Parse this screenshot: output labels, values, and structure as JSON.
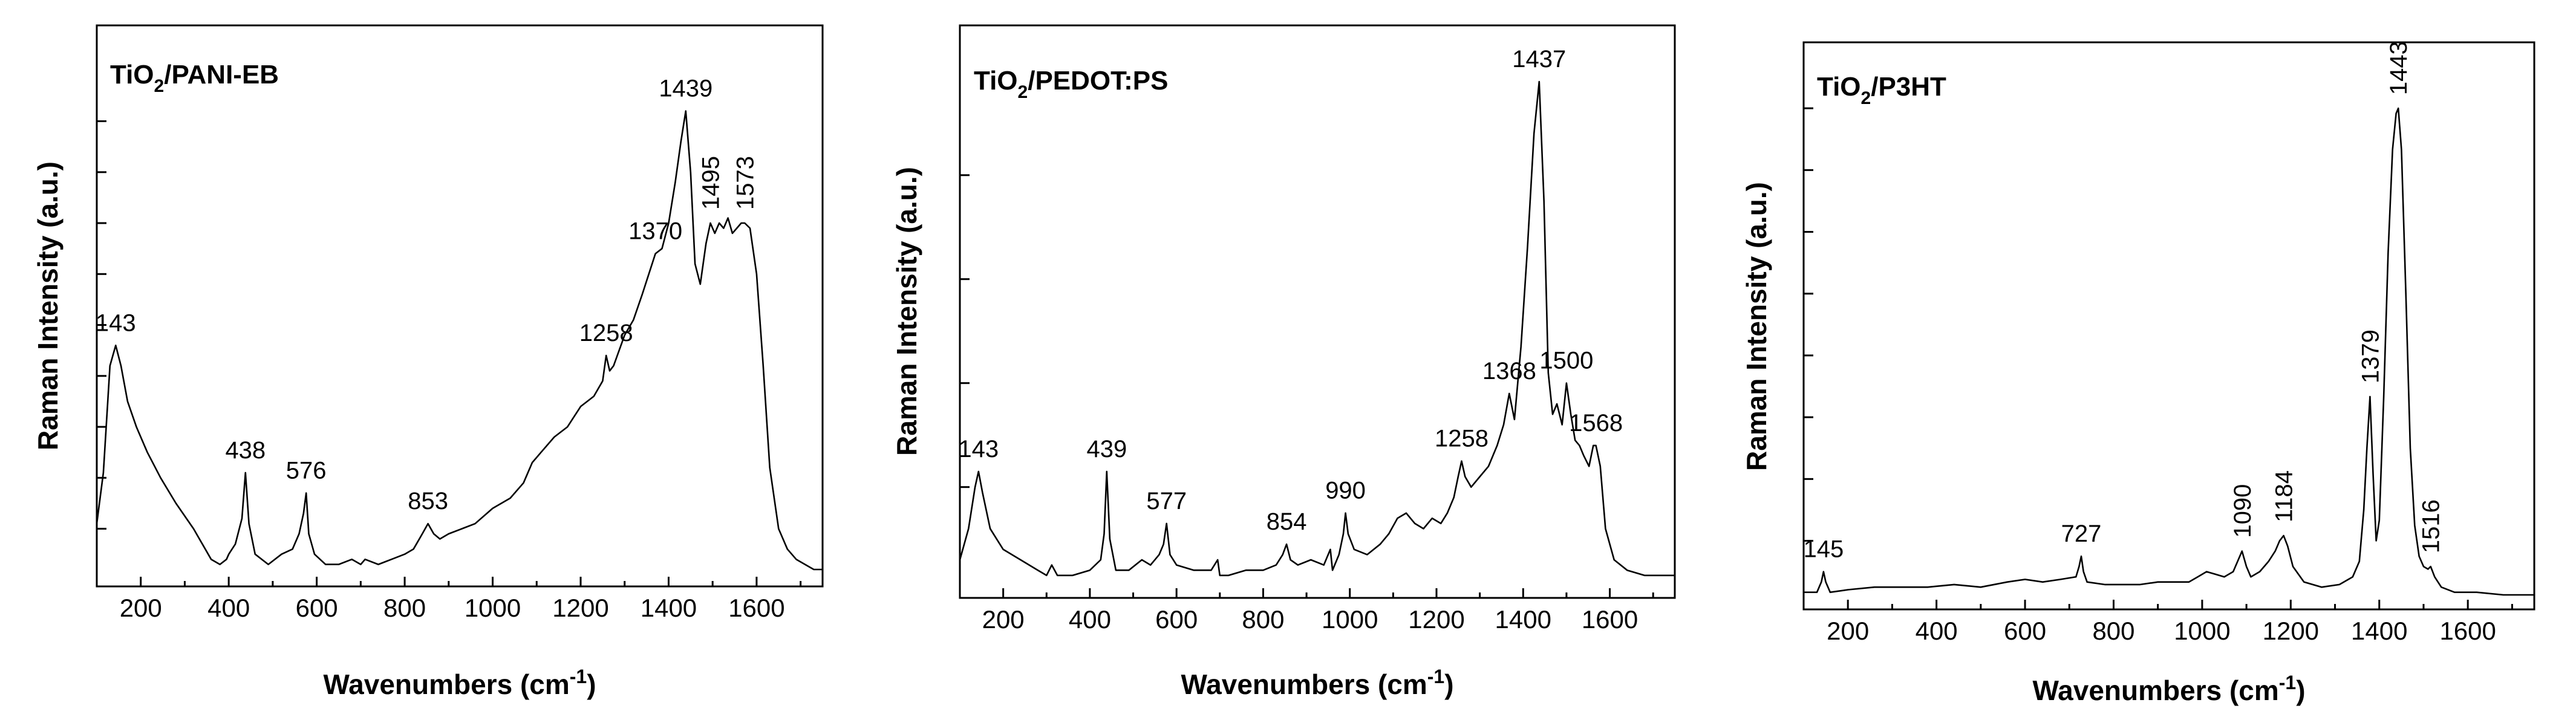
{
  "chart_data": [
    {
      "type": "line",
      "title": "TiO2/PANI-EB",
      "title_main": "TiO",
      "title_sub": "2",
      "title_rest": "/PANI-EB",
      "xlabel": "Wavenumbers (cm-1)",
      "xlabel_main": "Wavenumbers (cm",
      "xlabel_sup": "-1",
      "xlabel_end": ")",
      "ylabel": "Raman Intensity (a.u.)",
      "xlim": [
        100,
        1750
      ],
      "ylim": [
        0,
        100
      ],
      "xticks": [
        200,
        400,
        600,
        800,
        1000,
        1200,
        1400,
        1600
      ],
      "xtick_labels": [
        "200",
        "400",
        "600",
        "800",
        "1000",
        "1200",
        "1400",
        "1600"
      ],
      "yticks": [
        10,
        20,
        30,
        40,
        50,
        60,
        70,
        80,
        90
      ],
      "series": [
        {
          "name": "TiO2/PANI-EB",
          "x": [
            100,
            115,
            130,
            143,
            155,
            170,
            190,
            215,
            245,
            280,
            320,
            360,
            380,
            395,
            400,
            415,
            430,
            438,
            446,
            460,
            490,
            520,
            545,
            560,
            570,
            576,
            582,
            595,
            620,
            650,
            680,
            700,
            710,
            740,
            770,
            800,
            820,
            840,
            853,
            866,
            880,
            900,
            930,
            960,
            1000,
            1040,
            1070,
            1090,
            1110,
            1140,
            1170,
            1200,
            1230,
            1250,
            1258,
            1266,
            1275,
            1300,
            1320,
            1340,
            1355,
            1370,
            1385,
            1400,
            1415,
            1428,
            1439,
            1450,
            1460,
            1472,
            1485,
            1495,
            1505,
            1515,
            1525,
            1535,
            1545,
            1555,
            1565,
            1573,
            1585,
            1600,
            1615,
            1630,
            1650,
            1670,
            1690,
            1710,
            1730,
            1750
          ],
          "values": [
            11,
            21,
            42,
            46,
            42,
            35,
            30,
            25,
            20,
            15,
            10,
            4,
            3,
            4,
            5,
            7,
            12,
            21,
            11,
            5,
            3,
            5,
            6,
            9,
            13,
            17,
            9,
            5,
            3,
            3,
            4,
            3,
            4,
            3,
            4,
            5,
            6,
            9,
            11,
            9,
            8,
            9,
            10,
            11,
            14,
            16,
            19,
            23,
            25,
            28,
            30,
            34,
            36,
            39,
            44,
            41,
            42,
            48,
            51,
            56,
            60,
            64,
            65,
            70,
            78,
            86,
            92,
            80,
            62,
            58,
            66,
            70,
            68,
            70,
            69,
            71,
            68,
            69,
            70,
            70,
            69,
            60,
            42,
            22,
            10,
            6,
            4,
            3,
            2,
            2
          ]
        }
      ],
      "annotations": [
        {
          "x": 143,
          "label": "143"
        },
        {
          "x": 438,
          "label": "438"
        },
        {
          "x": 576,
          "label": "576"
        },
        {
          "x": 853,
          "label": "853"
        },
        {
          "x": 1258,
          "label": "1258"
        },
        {
          "x": 1370,
          "label": "1370"
        },
        {
          "x": 1439,
          "label": "1439"
        },
        {
          "x": 1495,
          "label": "1495",
          "rotated": true
        },
        {
          "x": 1573,
          "label": "1573",
          "rotated": true
        }
      ]
    },
    {
      "type": "line",
      "title": "TiO2/PEDOT:PS",
      "title_main": "TiO",
      "title_sub": "2",
      "title_rest": "/PEDOT:PS",
      "xlabel": "Wavenumbers (cm-1)",
      "xlabel_main": "Wavenumbers (cm",
      "xlabel_sup": "-1",
      "xlabel_end": ")",
      "ylabel": "Raman Intensity (a.u.)",
      "xlim": [
        100,
        1750
      ],
      "ylim": [
        0,
        100
      ],
      "xticks": [
        200,
        400,
        600,
        800,
        1000,
        1200,
        1400,
        1600
      ],
      "xtick_labels": [
        "200",
        "400",
        "600",
        "800",
        "1000",
        "1200",
        "1400",
        "1600"
      ],
      "yticks": [
        20,
        40,
        60,
        80
      ],
      "series": [
        {
          "name": "TiO2/PEDOT:PS",
          "x": [
            100,
            120,
            135,
            143,
            152,
            170,
            200,
            240,
            280,
            300,
            312,
            325,
            360,
            400,
            425,
            433,
            439,
            446,
            460,
            490,
            520,
            540,
            560,
            570,
            577,
            585,
            600,
            640,
            680,
            695,
            700,
            720,
            760,
            800,
            830,
            845,
            854,
            863,
            880,
            910,
            940,
            955,
            960,
            975,
            985,
            990,
            996,
            1010,
            1040,
            1070,
            1090,
            1110,
            1130,
            1150,
            1170,
            1190,
            1210,
            1225,
            1240,
            1250,
            1258,
            1266,
            1280,
            1300,
            1320,
            1340,
            1355,
            1368,
            1380,
            1395,
            1410,
            1425,
            1437,
            1448,
            1458,
            1468,
            1478,
            1490,
            1500,
            1510,
            1520,
            1530,
            1540,
            1552,
            1562,
            1568,
            1578,
            1590,
            1610,
            1640,
            1680,
            1720,
            1750
          ],
          "values": [
            6,
            12,
            20,
            23,
            19,
            12,
            8,
            6,
            4,
            3,
            5,
            3,
            3,
            4,
            6,
            11,
            23,
            10,
            4,
            4,
            6,
            5,
            7,
            9,
            13,
            7,
            5,
            4,
            4,
            6,
            3,
            3,
            4,
            4,
            5,
            7,
            9,
            6,
            5,
            6,
            5,
            8,
            4,
            7,
            11,
            15,
            11,
            8,
            7,
            9,
            11,
            14,
            15,
            13,
            12,
            14,
            13,
            15,
            18,
            22,
            25,
            22,
            20,
            22,
            24,
            28,
            32,
            38,
            33,
            47,
            66,
            88,
            98,
            75,
            42,
            34,
            36,
            32,
            40,
            34,
            29,
            28,
            26,
            24,
            28,
            28,
            24,
            12,
            6,
            4,
            3,
            3,
            3
          ]
        }
      ],
      "annotations": [
        {
          "x": 143,
          "label": "143"
        },
        {
          "x": 439,
          "label": "439"
        },
        {
          "x": 577,
          "label": "577"
        },
        {
          "x": 854,
          "label": "854"
        },
        {
          "x": 990,
          "label": "990"
        },
        {
          "x": 1258,
          "label": "1258"
        },
        {
          "x": 1368,
          "label": "1368"
        },
        {
          "x": 1437,
          "label": "1437"
        },
        {
          "x": 1500,
          "label": "1500"
        },
        {
          "x": 1568,
          "label": "1568"
        }
      ]
    },
    {
      "type": "line",
      "title": "TiO2/P3HT",
      "title_main": "TiO",
      "title_sub": "2",
      "title_rest": "/P3HT",
      "xlabel": "Wavenumbers (cm-1)",
      "xlabel_main": "Wavenumbers (cm",
      "xlabel_sup": "-1",
      "xlabel_end": ")",
      "ylabel": "Raman Intensity (a.u.)",
      "xlim": [
        100,
        1750
      ],
      "ylim": [
        0,
        100
      ],
      "xticks": [
        200,
        400,
        600,
        800,
        1000,
        1200,
        1400,
        1600
      ],
      "xtick_labels": [
        "200",
        "400",
        "600",
        "800",
        "1000",
        "1200",
        "1400",
        "1600"
      ],
      "yticks": [
        12,
        24,
        36,
        48,
        60,
        72,
        84,
        96
      ],
      "series": [
        {
          "name": "TiO2/P3HT",
          "x": [
            100,
            130,
            140,
            145,
            150,
            160,
            200,
            260,
            320,
            380,
            440,
            500,
            560,
            600,
            640,
            680,
            715,
            722,
            727,
            732,
            740,
            780,
            820,
            860,
            900,
            940,
            970,
            990,
            1010,
            1030,
            1050,
            1070,
            1080,
            1090,
            1100,
            1110,
            1130,
            1150,
            1165,
            1175,
            1184,
            1193,
            1205,
            1230,
            1270,
            1310,
            1340,
            1355,
            1365,
            1372,
            1379,
            1386,
            1393,
            1400,
            1410,
            1420,
            1430,
            1438,
            1443,
            1450,
            1460,
            1470,
            1480,
            1490,
            1500,
            1510,
            1516,
            1525,
            1540,
            1570,
            1620,
            1680,
            1750
          ],
          "values": [
            2,
            2,
            4,
            6,
            4,
            2,
            2.5,
            3,
            3,
            3,
            3.5,
            3,
            4,
            4.5,
            4,
            4.5,
            5,
            7,
            9,
            6,
            4,
            3.5,
            3.5,
            3.5,
            4,
            4,
            4,
            5,
            6,
            5.5,
            5,
            6,
            8,
            10,
            7,
            5,
            6,
            8,
            10,
            12,
            13,
            11,
            7,
            4,
            3,
            3.5,
            5,
            8,
            18,
            30,
            40,
            25,
            12,
            16,
            40,
            68,
            88,
            95,
            96,
            88,
            60,
            30,
            15,
            9,
            7,
            6.5,
            7,
            5,
            3,
            2,
            2,
            1.5,
            1.5
          ]
        }
      ],
      "annotations": [
        {
          "x": 145,
          "label": "145"
        },
        {
          "x": 727,
          "label": "727"
        },
        {
          "x": 1090,
          "label": "1090",
          "rotated": true
        },
        {
          "x": 1184,
          "label": "1184",
          "rotated": true
        },
        {
          "x": 1379,
          "label": "1379",
          "rotated": true
        },
        {
          "x": 1443,
          "label": "1443",
          "rotated": true
        },
        {
          "x": 1516,
          "label": "1516",
          "rotated": true
        }
      ]
    }
  ]
}
